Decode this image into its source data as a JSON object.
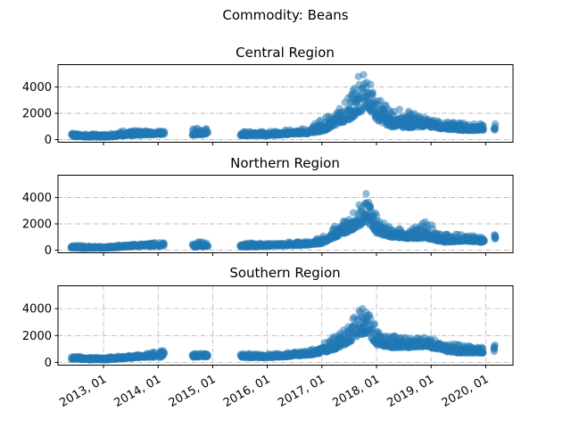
{
  "suptitle": "Commodity: Beans",
  "colors": {
    "marker": "#1f77b4",
    "grid": "#b0b0b0"
  },
  "chart_data": {
    "type": "scatter",
    "title": "Commodity: Beans",
    "x_axis": {
      "type": "date",
      "min": "2012-03-01",
      "max": "2020-07-01",
      "ticks": [
        "2013-01-01",
        "2014-01-01",
        "2015-01-01",
        "2016-01-01",
        "2017-01-01",
        "2018-01-01",
        "2019-01-01",
        "2020-01-01"
      ],
      "tick_labels": [
        "2013, 01",
        "2014, 01",
        "2015, 01",
        "2016, 01",
        "2017, 01",
        "2018, 01",
        "2019, 01",
        "2020, 01"
      ]
    },
    "y_axis": {
      "min": -200,
      "max": 5700,
      "ticks": [
        0,
        2000,
        4000
      ]
    },
    "marker": {
      "shape": "circle",
      "color": "#1f77b4",
      "alpha": 0.5
    },
    "panels": [
      {
        "title": "Central Region",
        "grid": "y",
        "x_labels_visible": false,
        "series_summary": [
          [
            "2012-06",
            250,
            500
          ],
          [
            "2012-09",
            200,
            420
          ],
          [
            "2012-12",
            180,
            400
          ],
          [
            "2013-03",
            220,
            450
          ],
          [
            "2013-06",
            320,
            700
          ],
          [
            "2013-09",
            350,
            650
          ],
          [
            "2014-01",
            400,
            700
          ],
          [
            "2014-09",
            350,
            800
          ],
          [
            "2015-01",
            400,
            1000
          ],
          [
            "2015-08",
            300,
            650
          ],
          [
            "2016-01",
            300,
            600
          ],
          [
            "2016-06",
            400,
            750
          ],
          [
            "2016-10",
            450,
            900
          ],
          [
            "2017-01",
            600,
            1500
          ],
          [
            "2017-04",
            1100,
            2200
          ],
          [
            "2017-07",
            1500,
            3500
          ],
          [
            "2017-09",
            2000,
            4800
          ],
          [
            "2017-11",
            2500,
            5450
          ],
          [
            "2018-01",
            1500,
            3200
          ],
          [
            "2018-04",
            1000,
            2400
          ],
          [
            "2018-08",
            900,
            2200
          ],
          [
            "2018-12",
            1000,
            1600
          ],
          [
            "2019-04",
            800,
            1400
          ],
          [
            "2019-08",
            700,
            1300
          ],
          [
            "2019-12",
            700,
            1200
          ],
          [
            "2020-03",
            700,
            1300
          ]
        ]
      },
      {
        "title": "Northern Region",
        "grid": "y",
        "x_labels_visible": false,
        "series_summary": [
          [
            "2012-06",
            150,
            400
          ],
          [
            "2012-10",
            150,
            300
          ],
          [
            "2013-02",
            150,
            300
          ],
          [
            "2013-06",
            250,
            450
          ],
          [
            "2013-10",
            300,
            500
          ],
          [
            "2014-01",
            300,
            700
          ],
          [
            "2014-09",
            250,
            550
          ],
          [
            "2015-01",
            300,
            800
          ],
          [
            "2015-08",
            250,
            550
          ],
          [
            "2016-01",
            300,
            500
          ],
          [
            "2016-06",
            350,
            600
          ],
          [
            "2016-10",
            400,
            650
          ],
          [
            "2017-01",
            500,
            1000
          ],
          [
            "2017-04",
            1000,
            1900
          ],
          [
            "2017-07",
            1400,
            2500
          ],
          [
            "2017-09",
            1800,
            3300
          ],
          [
            "2017-11",
            2200,
            4600
          ],
          [
            "2018-01",
            1300,
            2700
          ],
          [
            "2018-04",
            1000,
            1700
          ],
          [
            "2018-08",
            900,
            1500
          ],
          [
            "2018-12",
            900,
            2200
          ],
          [
            "2019-04",
            600,
            1200
          ],
          [
            "2019-08",
            700,
            1200
          ],
          [
            "2019-12",
            600,
            1000
          ],
          [
            "2020-03",
            700,
            1200
          ]
        ]
      },
      {
        "title": "Southern Region",
        "grid": "both",
        "x_labels_visible": true,
        "series_summary": [
          [
            "2012-06",
            250,
            500
          ],
          [
            "2012-10",
            200,
            380
          ],
          [
            "2013-02",
            200,
            380
          ],
          [
            "2013-06",
            300,
            550
          ],
          [
            "2013-10",
            400,
            650
          ],
          [
            "2014-01",
            400,
            900
          ],
          [
            "2014-09",
            400,
            650
          ],
          [
            "2015-01",
            450,
            850
          ],
          [
            "2015-08",
            350,
            650
          ],
          [
            "2016-01",
            350,
            600
          ],
          [
            "2016-06",
            450,
            750
          ],
          [
            "2016-10",
            550,
            850
          ],
          [
            "2017-01",
            700,
            1300
          ],
          [
            "2017-04",
            1000,
            2000
          ],
          [
            "2017-07",
            1500,
            2700
          ],
          [
            "2017-09",
            2000,
            3900
          ],
          [
            "2017-11",
            2200,
            4100
          ],
          [
            "2018-01",
            1300,
            2700
          ],
          [
            "2018-04",
            1100,
            2000
          ],
          [
            "2018-08",
            1100,
            1800
          ],
          [
            "2018-12",
            1200,
            1900
          ],
          [
            "2019-04",
            800,
            1500
          ],
          [
            "2019-08",
            700,
            1300
          ],
          [
            "2019-12",
            700,
            1100
          ],
          [
            "2020-03",
            800,
            1400
          ]
        ]
      }
    ]
  }
}
